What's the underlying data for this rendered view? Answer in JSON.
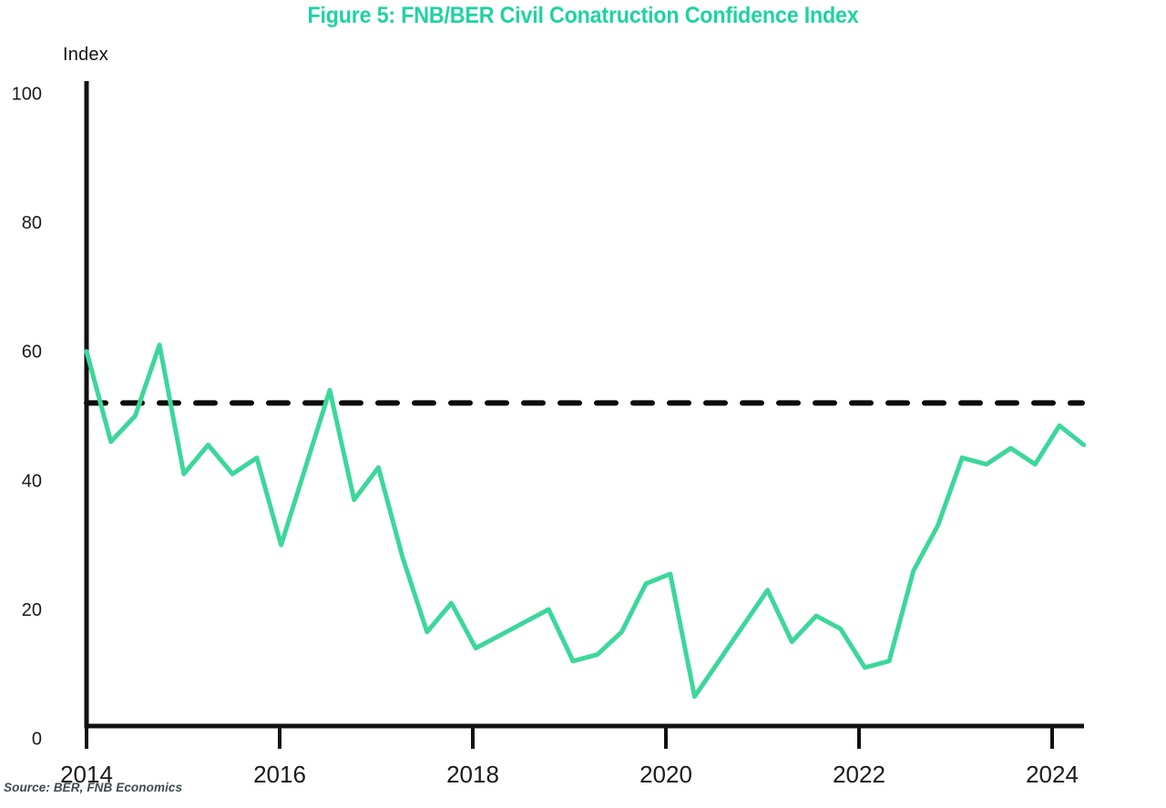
{
  "page": {
    "title": "Figure 5: FNB/BER Civil Conatruction Confidence Index",
    "source": "Source: BER, FNB Economics"
  },
  "colors": {
    "title_green": "#1FD2A3",
    "line_green": "#3CD79A",
    "axis_black": "#111111",
    "dash_black": "#0b0b0b",
    "tick_label": "#1a1a1a",
    "source_text": "#3E4A4E"
  },
  "chart_data": {
    "type": "line",
    "title": "Figure 5: FNB/BER Civil Conatruction Confidence Index",
    "ylabel": "Index",
    "xlabel": "",
    "ylim": [
      0,
      100
    ],
    "y_ticks": [
      0,
      20,
      40,
      60,
      80,
      100
    ],
    "x_ticks": [
      2014,
      2016,
      2018,
      2020,
      2022,
      2024
    ],
    "grid": false,
    "legend_position": "none",
    "reference_line": {
      "value": 52,
      "style": "dashed"
    },
    "categories": [
      "2014Q1",
      "2014Q2",
      "2014Q3",
      "2014Q4",
      "2015Q1",
      "2015Q2",
      "2015Q3",
      "2015Q4",
      "2016Q1",
      "2016Q2",
      "2016Q3",
      "2016Q4",
      "2017Q1",
      "2017Q2",
      "2017Q3",
      "2017Q4",
      "2018Q1",
      "2018Q2",
      "2018Q3",
      "2018Q4",
      "2019Q1",
      "2019Q2",
      "2019Q3",
      "2019Q4",
      "2020Q1",
      "2020Q2",
      "2020Q3",
      "2020Q4",
      "2021Q1",
      "2021Q2",
      "2021Q3",
      "2021Q4",
      "2022Q1",
      "2022Q2",
      "2022Q3",
      "2022Q4",
      "2023Q1",
      "2023Q2",
      "2023Q3",
      "2023Q4",
      "2024Q1",
      "2024Q2"
    ],
    "series": [
      {
        "name": "FNB/BER Civil Construction Confidence Index",
        "values": [
          60,
          46,
          50,
          61,
          41,
          45.5,
          41,
          43.5,
          30,
          42,
          54,
          37,
          42,
          28,
          16.5,
          21,
          14,
          16,
          18,
          20,
          12,
          13,
          16.5,
          24,
          25.5,
          6.5,
          12,
          17.5,
          23,
          15,
          19,
          17,
          11,
          12,
          26,
          33,
          43.5,
          42.5,
          45,
          42.5,
          48.5,
          45.5
        ]
      }
    ]
  }
}
